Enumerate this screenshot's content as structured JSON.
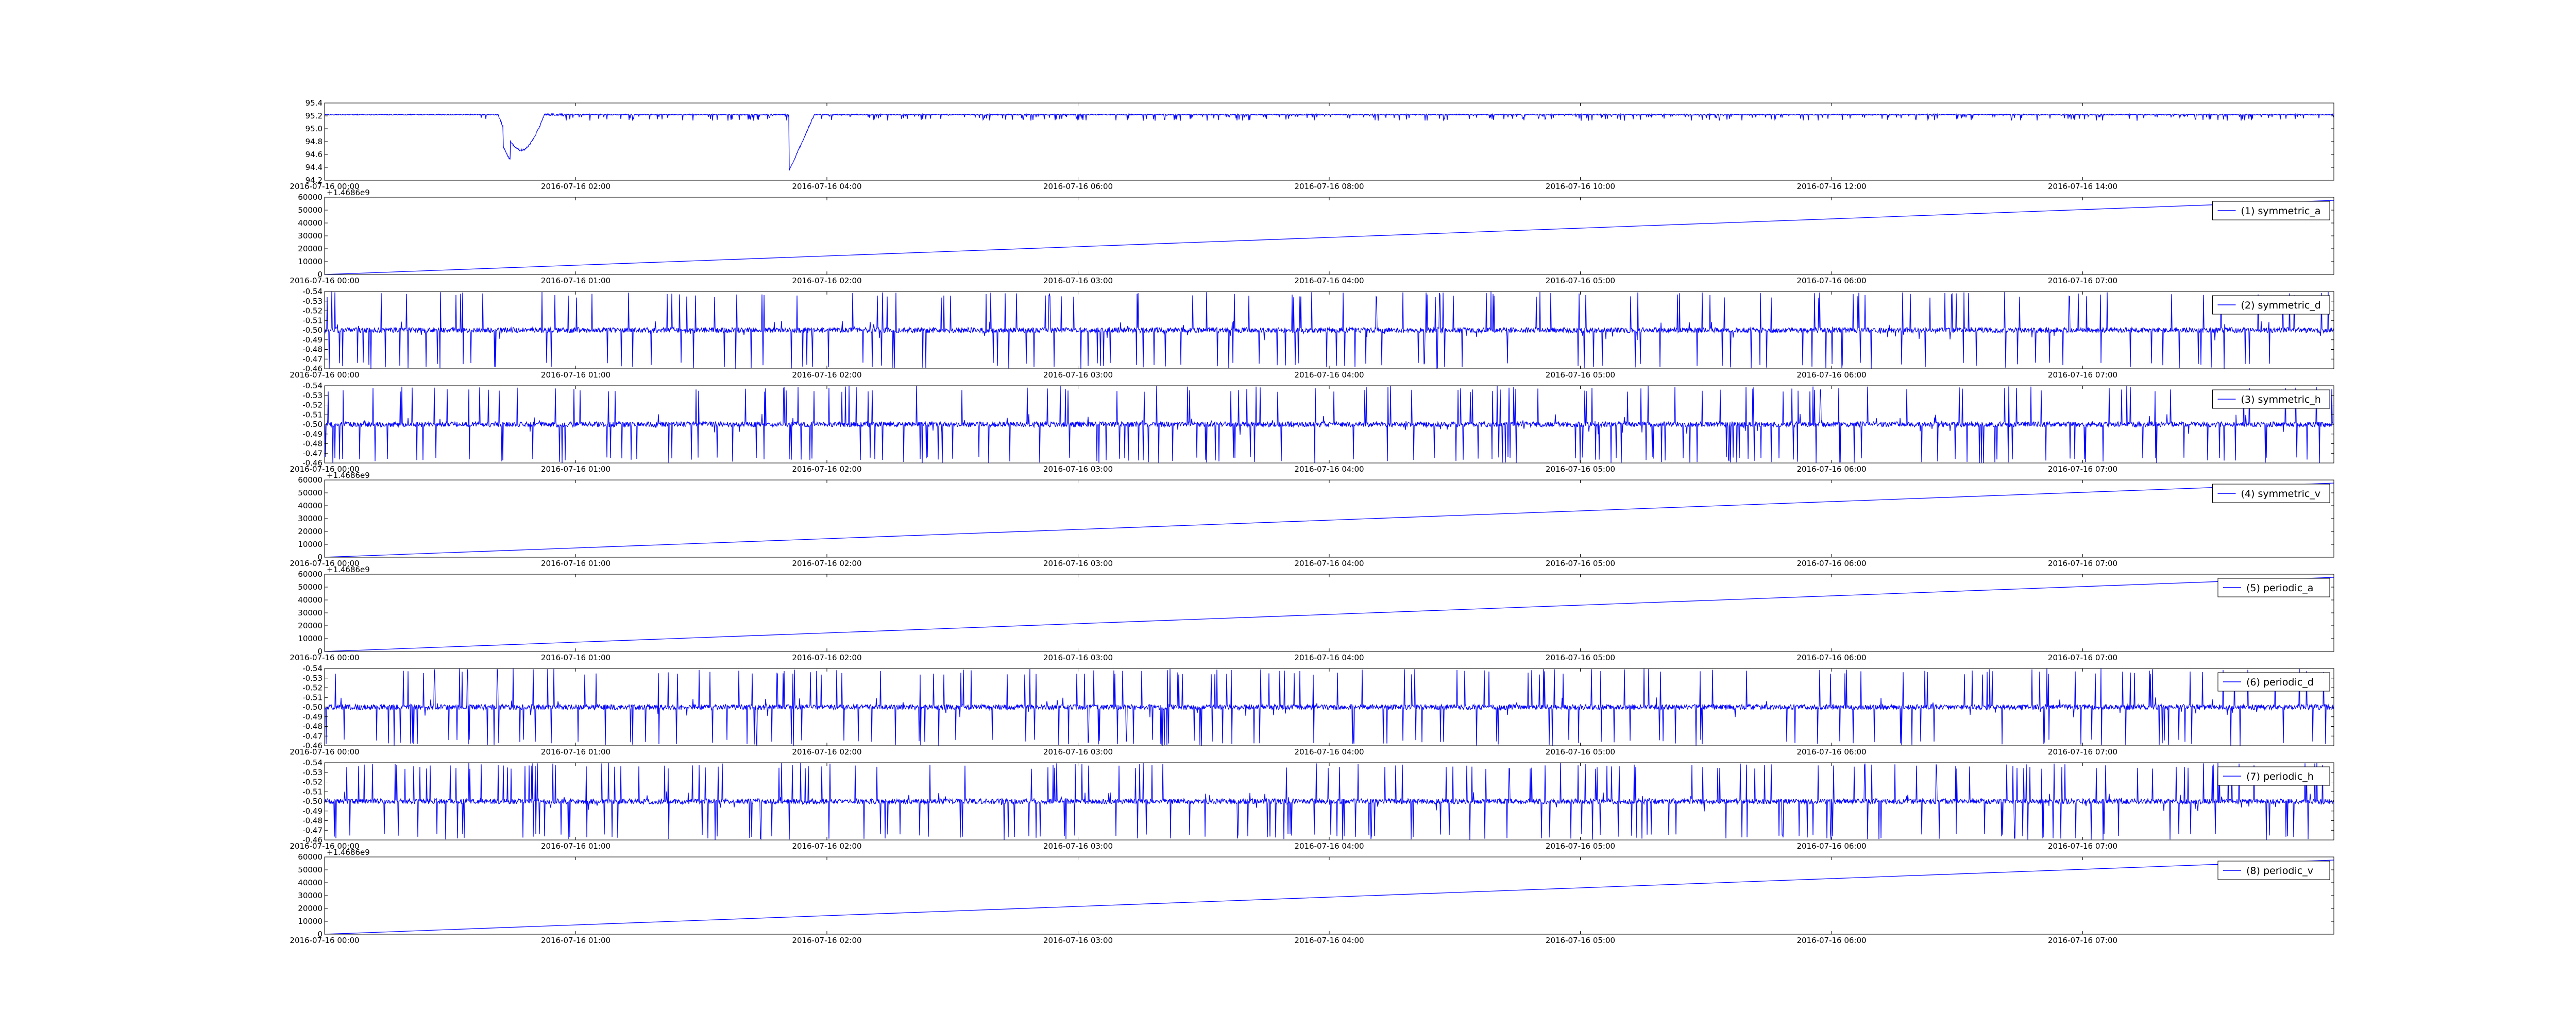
{
  "chart_data": [
    {
      "type": "line",
      "color": "#0000ff",
      "generator": "noisy",
      "xticks": [
        "2016-07-16 00:00",
        "2016-07-16 02:00",
        "2016-07-16 04:00",
        "2016-07-16 06:00",
        "2016-07-16 08:00",
        "2016-07-16 10:00",
        "2016-07-16 12:00",
        "2016-07-16 14:00"
      ],
      "yticks": [
        "94.2",
        "94.4",
        "94.6",
        "94.8",
        "95.0",
        "95.2",
        "95.4"
      ],
      "ylim": [
        94.2,
        95.4
      ],
      "legend": "",
      "offset_label": "",
      "series_stats": {
        "baseline": 95.22,
        "dip_times_hours": [
          1.45,
          3.75
        ],
        "dip_minimum": 94.35,
        "x_span_hours": 16
      }
    },
    {
      "type": "line",
      "color": "#0000ff",
      "generator": "ramp",
      "xticks": [
        "2016-07-16 00:00",
        "2016-07-16 01:00",
        "2016-07-16 02:00",
        "2016-07-16 03:00",
        "2016-07-16 04:00",
        "2016-07-16 05:00",
        "2016-07-16 06:00",
        "2016-07-16 07:00"
      ],
      "yticks": [
        "0",
        "10000",
        "20000",
        "30000",
        "40000",
        "50000",
        "60000"
      ],
      "ylim": [
        0,
        60000
      ],
      "legend": "(1) symmetric_a",
      "offset_label": "+1.4686e9",
      "series_stats": {
        "start": 0,
        "end": 57600,
        "x_span_hours": 8
      }
    },
    {
      "type": "line",
      "color": "#0000ff",
      "generator": "spiky",
      "xticks": [
        "2016-07-16 00:00",
        "2016-07-16 01:00",
        "2016-07-16 02:00",
        "2016-07-16 03:00",
        "2016-07-16 04:00",
        "2016-07-16 05:00",
        "2016-07-16 06:00",
        "2016-07-16 07:00"
      ],
      "yticks": [
        "-0.46",
        "-0.47",
        "-0.48",
        "-0.49",
        "-0.50",
        "-0.51",
        "-0.52",
        "-0.53",
        "-0.54"
      ],
      "ylim": [
        -0.54,
        -0.46
      ],
      "legend": "(2) symmetric_d",
      "offset_label": "",
      "series_stats": {
        "baseline": -0.5,
        "x_span_hours": 8
      }
    },
    {
      "type": "line",
      "color": "#0000ff",
      "generator": "spiky",
      "xticks": [
        "2016-07-16 00:00",
        "2016-07-16 01:00",
        "2016-07-16 02:00",
        "2016-07-16 03:00",
        "2016-07-16 04:00",
        "2016-07-16 05:00",
        "2016-07-16 06:00",
        "2016-07-16 07:00"
      ],
      "yticks": [
        "-0.46",
        "-0.47",
        "-0.48",
        "-0.49",
        "-0.50",
        "-0.51",
        "-0.52",
        "-0.53",
        "-0.54"
      ],
      "ylim": [
        -0.54,
        -0.46
      ],
      "legend": "(3) symmetric_h",
      "offset_label": "",
      "series_stats": {
        "baseline": -0.5,
        "x_span_hours": 8
      }
    },
    {
      "type": "line",
      "color": "#0000ff",
      "generator": "ramp",
      "xticks": [
        "2016-07-16 00:00",
        "2016-07-16 01:00",
        "2016-07-16 02:00",
        "2016-07-16 03:00",
        "2016-07-16 04:00",
        "2016-07-16 05:00",
        "2016-07-16 06:00",
        "2016-07-16 07:00"
      ],
      "yticks": [
        "0",
        "10000",
        "20000",
        "30000",
        "40000",
        "50000",
        "60000"
      ],
      "ylim": [
        0,
        60000
      ],
      "legend": "(4) symmetric_v",
      "offset_label": "+1.4686e9",
      "series_stats": {
        "start": 0,
        "end": 57600,
        "x_span_hours": 8
      }
    },
    {
      "type": "line",
      "color": "#0000ff",
      "generator": "ramp",
      "xticks": [
        "2016-07-16 00:00",
        "2016-07-16 01:00",
        "2016-07-16 02:00",
        "2016-07-16 03:00",
        "2016-07-16 04:00",
        "2016-07-16 05:00",
        "2016-07-16 06:00",
        "2016-07-16 07:00"
      ],
      "yticks": [
        "0",
        "10000",
        "20000",
        "30000",
        "40000",
        "50000",
        "60000"
      ],
      "ylim": [
        0,
        60000
      ],
      "legend": "(5) periodic_a",
      "offset_label": "+1.4686e9",
      "series_stats": {
        "start": 0,
        "end": 57600,
        "x_span_hours": 8
      }
    },
    {
      "type": "line",
      "color": "#0000ff",
      "generator": "spiky",
      "xticks": [
        "2016-07-16 00:00",
        "2016-07-16 01:00",
        "2016-07-16 02:00",
        "2016-07-16 03:00",
        "2016-07-16 04:00",
        "2016-07-16 05:00",
        "2016-07-16 06:00",
        "2016-07-16 07:00"
      ],
      "yticks": [
        "-0.46",
        "-0.47",
        "-0.48",
        "-0.49",
        "-0.50",
        "-0.51",
        "-0.52",
        "-0.53",
        "-0.54"
      ],
      "ylim": [
        -0.54,
        -0.46
      ],
      "legend": "(6) periodic_d",
      "offset_label": "",
      "series_stats": {
        "baseline": -0.5,
        "x_span_hours": 8
      }
    },
    {
      "type": "line",
      "color": "#0000ff",
      "generator": "spiky",
      "xticks": [
        "2016-07-16 00:00",
        "2016-07-16 01:00",
        "2016-07-16 02:00",
        "2016-07-16 03:00",
        "2016-07-16 04:00",
        "2016-07-16 05:00",
        "2016-07-16 06:00",
        "2016-07-16 07:00"
      ],
      "yticks": [
        "-0.46",
        "-0.47",
        "-0.48",
        "-0.49",
        "-0.50",
        "-0.51",
        "-0.52",
        "-0.53",
        "-0.54"
      ],
      "ylim": [
        -0.54,
        -0.46
      ],
      "legend": "(7) periodic_h",
      "offset_label": "",
      "series_stats": {
        "baseline": -0.5,
        "x_span_hours": 8
      }
    },
    {
      "type": "line",
      "color": "#0000ff",
      "generator": "ramp",
      "xticks": [
        "2016-07-16 00:00",
        "2016-07-16 01:00",
        "2016-07-16 02:00",
        "2016-07-16 03:00",
        "2016-07-16 04:00",
        "2016-07-16 05:00",
        "2016-07-16 06:00",
        "2016-07-16 07:00"
      ],
      "yticks": [
        "0",
        "10000",
        "20000",
        "30000",
        "40000",
        "50000",
        "60000"
      ],
      "ylim": [
        0,
        60000
      ],
      "legend": "(8) periodic_v",
      "offset_label": "+1.4686e9",
      "series_stats": {
        "start": 0,
        "end": 57600,
        "x_span_hours": 8
      }
    }
  ]
}
